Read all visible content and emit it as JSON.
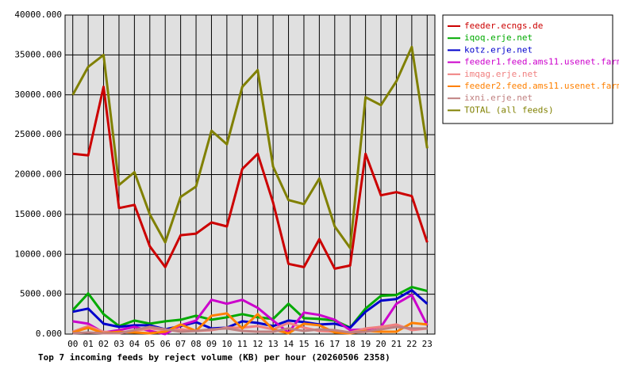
{
  "chart_data": {
    "type": "line",
    "title": "Top 7 incoming feeds by reject volume (KB) per hour (20260506 2358)",
    "categories": [
      "00",
      "01",
      "02",
      "03",
      "04",
      "05",
      "06",
      "07",
      "08",
      "09",
      "10",
      "11",
      "12",
      "13",
      "14",
      "15",
      "16",
      "17",
      "18",
      "19",
      "20",
      "21",
      "22",
      "23"
    ],
    "ylim": [
      0,
      40000
    ],
    "yticks": [
      {
        "value": 0,
        "label": "0.000"
      },
      {
        "value": 5000,
        "label": "5000.000"
      },
      {
        "value": 10000,
        "label": "10000.000"
      },
      {
        "value": 15000,
        "label": "15000.000"
      },
      {
        "value": 20000,
        "label": "20000.000"
      },
      {
        "value": 25000,
        "label": "25000.000"
      },
      {
        "value": 30000,
        "label": "30000.000"
      },
      {
        "value": 35000,
        "label": "35000.000"
      },
      {
        "value": 40000,
        "label": "40000.000"
      }
    ],
    "grid": true,
    "legend": "right",
    "series": [
      {
        "name": "feeder.ecngs.de",
        "color": "#cc0000",
        "values": [
          22600,
          22400,
          31000,
          15800,
          16200,
          11000,
          8400,
          12400,
          12600,
          14000,
          13500,
          20700,
          22600,
          16500,
          8800,
          8400,
          11900,
          8200,
          8600,
          22600,
          17400,
          17800,
          17300,
          11500
        ]
      },
      {
        "name": "iqoq.erje.net",
        "color": "#00aa00",
        "values": [
          3000,
          5100,
          2500,
          1000,
          1700,
          1300,
          1600,
          1800,
          2300,
          1800,
          2100,
          2500,
          2100,
          1900,
          3800,
          2000,
          1900,
          1700,
          800,
          3200,
          4800,
          4900,
          5900,
          5400
        ]
      },
      {
        "name": "kotz.erje.net",
        "color": "#0000cc",
        "values": [
          2800,
          3200,
          1300,
          900,
          1100,
          1100,
          600,
          1000,
          1500,
          700,
          800,
          1600,
          1400,
          1000,
          1700,
          1500,
          1200,
          1300,
          800,
          2800,
          4200,
          4400,
          5500,
          3800
        ]
      },
      {
        "name": "feeder1.feed.ams11.usenet.farm",
        "color": "#cc00cc",
        "values": [
          1600,
          1300,
          200,
          500,
          900,
          400,
          0,
          1100,
          1700,
          4300,
          3800,
          4300,
          3300,
          1700,
          200,
          2700,
          2400,
          1800,
          500,
          600,
          900,
          3800,
          4900,
          1100
        ]
      },
      {
        "name": "imqag.erje.net",
        "color": "#f08080",
        "values": [
          300,
          1000,
          300,
          100,
          400,
          700,
          500,
          600,
          400,
          500,
          800,
          800,
          1000,
          600,
          1400,
          800,
          400,
          300,
          200,
          700,
          900,
          1200,
          500,
          700
        ]
      },
      {
        "name": "feeder2.feed.ams11.usenet.farm",
        "color": "#ff8000",
        "values": [
          200,
          800,
          100,
          300,
          200,
          100,
          300,
          1200,
          400,
          2300,
          2600,
          700,
          2500,
          600,
          100,
          1300,
          1100,
          200,
          100,
          400,
          300,
          300,
          1400,
          1200
        ]
      },
      {
        "name": "ixni.erje.net",
        "color": "#c08080",
        "values": [
          100,
          200,
          100,
          100,
          500,
          900,
          600,
          300,
          400,
          600,
          700,
          400,
          300,
          300,
          700,
          400,
          600,
          500,
          200,
          300,
          600,
          900,
          700,
          700
        ]
      },
      {
        "name": "TOTAL (all feeds)",
        "color": "#808000",
        "values": [
          30000,
          33500,
          35000,
          18700,
          20300,
          15000,
          11500,
          17200,
          18500,
          25500,
          23800,
          31000,
          33100,
          21000,
          16800,
          16300,
          19500,
          13500,
          10800,
          29700,
          28700,
          31700,
          36000,
          23300
        ]
      }
    ]
  }
}
